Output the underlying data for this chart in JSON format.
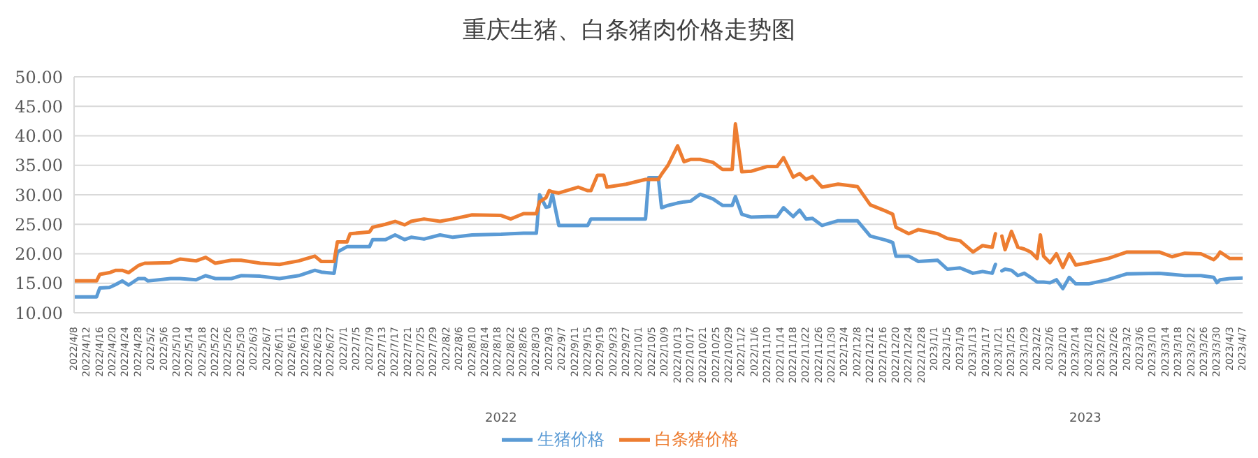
{
  "chart_data": {
    "type": "line",
    "title": "重庆生猪、白条猪肉价格走势图",
    "x": [
      "2022-04-08",
      "2022-04-15",
      "2022-04-16",
      "2022-04-19",
      "2022-04-21",
      "2022-04-23",
      "2022-04-25",
      "2022-04-28",
      "2022-04-30",
      "2022-05-01",
      "2022-05-08",
      "2022-05-11",
      "2022-05-16",
      "2022-05-19",
      "2022-05-22",
      "2022-05-27",
      "2022-05-30",
      "2022-06-05",
      "2022-06-11",
      "2022-06-17",
      "2022-06-22",
      "2022-06-24",
      "2022-06-28",
      "2022-06-29",
      "2022-07-02",
      "2022-07-03",
      "2022-07-09",
      "2022-07-10",
      "2022-07-14",
      "2022-07-17",
      "2022-07-20",
      "2022-07-22",
      "2022-07-26",
      "2022-07-31",
      "2022-08-04",
      "2022-08-10",
      "2022-08-19",
      "2022-08-22",
      "2022-08-26",
      "2022-08-30",
      "2022-08-31",
      "2022-09-02",
      "2022-09-03",
      "2022-09-04",
      "2022-09-06",
      "2022-09-12",
      "2022-09-15",
      "2022-09-16",
      "2022-09-18",
      "2022-09-20",
      "2022-09-21",
      "2022-09-27",
      "2022-10-03",
      "2022-10-04",
      "2022-10-07",
      "2022-10-08",
      "2022-10-10",
      "2022-10-13",
      "2022-10-15",
      "2022-10-17",
      "2022-10-20",
      "2022-10-24",
      "2022-10-27",
      "2022-10-30",
      "2022-10-31",
      "2022-11-02",
      "2022-11-05",
      "2022-11-10",
      "2022-11-13",
      "2022-11-15",
      "2022-11-18",
      "2022-11-20",
      "2022-11-22",
      "2022-11-24",
      "2022-11-27",
      "2022-12-02",
      "2022-12-08",
      "2022-12-12",
      "2022-12-17",
      "2022-12-19",
      "2022-12-20",
      "2022-12-24",
      "2022-12-27",
      "2023-01-02",
      "2023-01-05",
      "2023-01-09",
      "2023-01-13",
      "2023-01-16",
      "2023-01-19",
      "2023-01-20",
      "2023-01-21",
      "2023-01-22",
      "2023-01-23",
      "2023-01-25",
      "2023-01-27",
      "2023-01-29",
      "2023-01-31",
      "2023-02-02",
      "2023-02-03",
      "2023-02-04",
      "2023-02-06",
      "2023-02-08",
      "2023-02-10",
      "2023-02-12",
      "2023-02-14",
      "2023-02-18",
      "2023-02-24",
      "2023-03-02",
      "2023-03-12",
      "2023-03-16",
      "2023-03-20",
      "2023-03-25",
      "2023-03-29",
      "2023-03-30",
      "2023-03-31",
      "2023-04-03",
      "2023-04-07"
    ],
    "series": [
      {
        "name": "生猪价格",
        "color": "#5b9bd5",
        "values": [
          12.7,
          12.7,
          14.2,
          14.3,
          14.8,
          15.4,
          14.7,
          15.8,
          15.8,
          15.4,
          15.8,
          15.8,
          15.6,
          16.3,
          15.8,
          15.8,
          16.3,
          16.2,
          15.8,
          16.3,
          17.2,
          16.9,
          16.7,
          20.3,
          21.2,
          21.2,
          21.2,
          22.4,
          22.4,
          23.2,
          22.4,
          22.8,
          22.5,
          23.2,
          22.8,
          23.2,
          23.3,
          23.4,
          23.5,
          23.5,
          30.0,
          27.9,
          28.0,
          30.1,
          24.8,
          24.8,
          24.8,
          25.9,
          25.9,
          25.9,
          25.9,
          25.9,
          25.9,
          32.9,
          32.9,
          27.8,
          28.2,
          28.6,
          28.8,
          28.9,
          30.1,
          29.3,
          28.2,
          28.2,
          29.7,
          26.7,
          26.2,
          26.3,
          26.3,
          27.8,
          26.3,
          27.4,
          25.9,
          26.0,
          24.8,
          25.6,
          25.6,
          23.0,
          22.3,
          21.9,
          19.6,
          19.6,
          18.7,
          18.9,
          17.4,
          17.6,
          16.7,
          17.0,
          16.7,
          18.2,
          null,
          17.1,
          17.4,
          17.2,
          16.3,
          16.7,
          16.0,
          15.2,
          15.2,
          15.2,
          15.1,
          15.6,
          14.1,
          16.0,
          14.9,
          14.9,
          15.6,
          16.6,
          16.7,
          16.5,
          16.3,
          16.3,
          16.0,
          15.1,
          15.6,
          15.8,
          15.9
        ]
      },
      {
        "name": "白条猪价格",
        "color": "#ed7d31",
        "values": [
          15.4,
          15.4,
          16.5,
          16.8,
          17.2,
          17.2,
          16.8,
          18.0,
          18.4,
          18.4,
          18.5,
          19.1,
          18.8,
          19.4,
          18.4,
          18.9,
          18.9,
          18.4,
          18.2,
          18.8,
          19.6,
          18.7,
          18.7,
          22.0,
          22.0,
          23.4,
          23.7,
          24.5,
          25.0,
          25.5,
          24.9,
          25.5,
          25.9,
          25.5,
          25.9,
          26.6,
          26.5,
          25.9,
          26.8,
          26.8,
          28.8,
          29.5,
          30.7,
          30.5,
          30.3,
          31.3,
          30.7,
          30.7,
          33.3,
          33.3,
          31.3,
          31.8,
          32.6,
          32.6,
          32.6,
          33.5,
          35.0,
          38.3,
          35.6,
          36.0,
          36.0,
          35.5,
          34.3,
          34.3,
          42.0,
          33.9,
          34.0,
          34.8,
          34.8,
          36.3,
          33.0,
          33.6,
          32.6,
          33.1,
          31.3,
          31.8,
          31.4,
          28.3,
          27.2,
          26.7,
          24.5,
          23.4,
          24.1,
          23.4,
          22.6,
          22.2,
          20.3,
          21.4,
          21.1,
          23.4,
          null,
          23.0,
          20.7,
          23.8,
          21.1,
          20.8,
          20.3,
          19.2,
          23.2,
          19.6,
          18.5,
          20.0,
          17.7,
          20.0,
          18.1,
          18.5,
          19.2,
          20.3,
          20.3,
          19.5,
          20.1,
          20.0,
          19.0,
          19.5,
          20.3,
          19.2,
          19.2
        ]
      }
    ],
    "ylim": [
      10,
      50
    ],
    "yticks": [
      {
        "value": 10,
        "label": "10.00"
      },
      {
        "value": 15,
        "label": "15.00"
      },
      {
        "value": 20,
        "label": "20.00"
      },
      {
        "value": 25,
        "label": "25.00"
      },
      {
        "value": 30,
        "label": "30.00"
      },
      {
        "value": 35,
        "label": "35.00"
      },
      {
        "value": 40,
        "label": "40.00"
      },
      {
        "value": 45,
        "label": "45.00"
      },
      {
        "value": 50,
        "label": "50.00"
      }
    ],
    "xlim": [
      "2022-04-08",
      "2023-04-07"
    ],
    "xticks": [
      {
        "value": "2022-04-08",
        "label": "2022/4/8"
      },
      {
        "value": "2022-04-12",
        "label": "2022/4/12"
      },
      {
        "value": "2022-04-16",
        "label": "2022/4/16"
      },
      {
        "value": "2022-04-20",
        "label": "2022/4/20"
      },
      {
        "value": "2022-04-24",
        "label": "2022/4/24"
      },
      {
        "value": "2022-04-28",
        "label": "2022/4/28"
      },
      {
        "value": "2022-05-02",
        "label": "2022/5/2"
      },
      {
        "value": "2022-05-06",
        "label": "2022/5/6"
      },
      {
        "value": "2022-05-10",
        "label": "2022/5/10"
      },
      {
        "value": "2022-05-14",
        "label": "2022/5/14"
      },
      {
        "value": "2022-05-18",
        "label": "2022/5/18"
      },
      {
        "value": "2022-05-22",
        "label": "2022/5/22"
      },
      {
        "value": "2022-05-26",
        "label": "2022/5/26"
      },
      {
        "value": "2022-05-30",
        "label": "2022/5/30"
      },
      {
        "value": "2022-06-03",
        "label": "2022/6/3"
      },
      {
        "value": "2022-06-07",
        "label": "2022/6/7"
      },
      {
        "value": "2022-06-11",
        "label": "2022/6/11"
      },
      {
        "value": "2022-06-15",
        "label": "2022/6/15"
      },
      {
        "value": "2022-06-19",
        "label": "2022/6/19"
      },
      {
        "value": "2022-06-23",
        "label": "2022/6/23"
      },
      {
        "value": "2022-06-27",
        "label": "2022/6/27"
      },
      {
        "value": "2022-07-01",
        "label": "2022/7/1"
      },
      {
        "value": "2022-07-05",
        "label": "2022/7/5"
      },
      {
        "value": "2022-07-09",
        "label": "2022/7/9"
      },
      {
        "value": "2022-07-13",
        "label": "2022/7/13"
      },
      {
        "value": "2022-07-17",
        "label": "2022/7/17"
      },
      {
        "value": "2022-07-21",
        "label": "2022/7/21"
      },
      {
        "value": "2022-07-25",
        "label": "2022/7/25"
      },
      {
        "value": "2022-07-29",
        "label": "2022/7/29"
      },
      {
        "value": "2022-08-02",
        "label": "2022/8/2"
      },
      {
        "value": "2022-08-06",
        "label": "2022/8/6"
      },
      {
        "value": "2022-08-10",
        "label": "2022/8/10"
      },
      {
        "value": "2022-08-14",
        "label": "2022/8/14"
      },
      {
        "value": "2022-08-18",
        "label": "2022/8/18"
      },
      {
        "value": "2022-08-22",
        "label": "2022/8/22"
      },
      {
        "value": "2022-08-26",
        "label": "2022/8/26"
      },
      {
        "value": "2022-08-30",
        "label": "2022/8/30"
      },
      {
        "value": "2022-09-03",
        "label": "2022/9/3"
      },
      {
        "value": "2022-09-07",
        "label": "2022/9/7"
      },
      {
        "value": "2022-09-11",
        "label": "2022/9/11"
      },
      {
        "value": "2022-09-15",
        "label": "2022/9/15"
      },
      {
        "value": "2022-09-19",
        "label": "2022/9/19"
      },
      {
        "value": "2022-09-23",
        "label": "2022/9/23"
      },
      {
        "value": "2022-09-27",
        "label": "2022/9/27"
      },
      {
        "value": "2022-10-01",
        "label": "2022/10/1"
      },
      {
        "value": "2022-10-05",
        "label": "2022/10/5"
      },
      {
        "value": "2022-10-09",
        "label": "2022/10/9"
      },
      {
        "value": "2022-10-13",
        "label": "2022/10/13"
      },
      {
        "value": "2022-10-17",
        "label": "2022/10/17"
      },
      {
        "value": "2022-10-21",
        "label": "2022/10/21"
      },
      {
        "value": "2022-10-25",
        "label": "2022/10/25"
      },
      {
        "value": "2022-10-29",
        "label": "2022/10/29"
      },
      {
        "value": "2022-11-02",
        "label": "2022/11/2"
      },
      {
        "value": "2022-11-06",
        "label": "2022/11/6"
      },
      {
        "value": "2022-11-10",
        "label": "2022/11/10"
      },
      {
        "value": "2022-11-14",
        "label": "2022/11/14"
      },
      {
        "value": "2022-11-18",
        "label": "2022/11/18"
      },
      {
        "value": "2022-11-22",
        "label": "2022/11/22"
      },
      {
        "value": "2022-11-26",
        "label": "2022/11/26"
      },
      {
        "value": "2022-11-30",
        "label": "2022/11/30"
      },
      {
        "value": "2022-12-04",
        "label": "2022/12/4"
      },
      {
        "value": "2022-12-08",
        "label": "2022/12/8"
      },
      {
        "value": "2022-12-12",
        "label": "2022/12/12"
      },
      {
        "value": "2022-12-16",
        "label": "2022/12/16"
      },
      {
        "value": "2022-12-20",
        "label": "2022/12/20"
      },
      {
        "value": "2022-12-24",
        "label": "2022/12/24"
      },
      {
        "value": "2022-12-28",
        "label": "2022/12/28"
      },
      {
        "value": "2023-01-01",
        "label": "2023/1/1"
      },
      {
        "value": "2023-01-05",
        "label": "2023/1/5"
      },
      {
        "value": "2023-01-09",
        "label": "2023/1/9"
      },
      {
        "value": "2023-01-13",
        "label": "2023/1/13"
      },
      {
        "value": "2023-01-17",
        "label": "2023/1/17"
      },
      {
        "value": "2023-01-21",
        "label": "2023/1/21"
      },
      {
        "value": "2023-01-25",
        "label": "2023/1/25"
      },
      {
        "value": "2023-01-29",
        "label": "2023/1/29"
      },
      {
        "value": "2023-02-02",
        "label": "2023/2/2"
      },
      {
        "value": "2023-02-06",
        "label": "2023/2/6"
      },
      {
        "value": "2023-02-10",
        "label": "2023/2/10"
      },
      {
        "value": "2023-02-14",
        "label": "2023/2/14"
      },
      {
        "value": "2023-02-18",
        "label": "2023/2/18"
      },
      {
        "value": "2023-02-22",
        "label": "2023/2/22"
      },
      {
        "value": "2023-02-26",
        "label": "2023/2/26"
      },
      {
        "value": "2023-03-02",
        "label": "2023/3/2"
      },
      {
        "value": "2023-03-06",
        "label": "2023/3/6"
      },
      {
        "value": "2023-03-10",
        "label": "2023/3/10"
      },
      {
        "value": "2023-03-14",
        "label": "2023/3/14"
      },
      {
        "value": "2023-03-18",
        "label": "2023/3/18"
      },
      {
        "value": "2023-03-22",
        "label": "2023/3/22"
      },
      {
        "value": "2023-03-26",
        "label": "2023/3/26"
      },
      {
        "value": "2023-03-30",
        "label": "2023/3/30"
      },
      {
        "value": "2023-04-03",
        "label": "2023/4/3"
      },
      {
        "value": "2023-04-07",
        "label": "2023/4/7"
      }
    ],
    "x2lim": [
      "2022-04-08",
      "2023-04-07"
    ],
    "x2ticks": [
      {
        "value": "2022-08-19",
        "label": "2022"
      },
      {
        "value": "2023-02-17",
        "label": "2023"
      }
    ],
    "grid": "y",
    "legend": "bottom",
    "marker": "none",
    "line_style": "solid"
  }
}
